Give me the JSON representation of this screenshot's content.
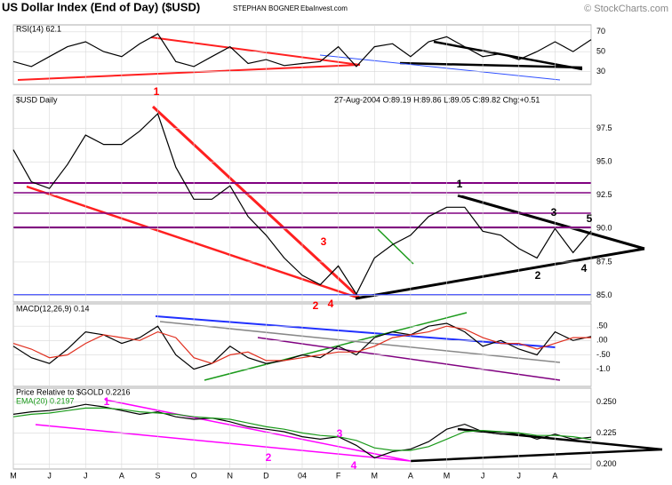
{
  "header": {
    "title": "US Dollar Index (End of Day) ($USD)",
    "author": "STEPHAN BOGNER",
    "site": "EbaInvest.com",
    "copyright": "© StockCharts.com"
  },
  "chart_data": [
    {
      "type": "line",
      "title": "RSI(14) 62.1",
      "color": "#000000",
      "grid": true,
      "values": [
        40,
        35,
        45,
        55,
        60,
        50,
        45,
        58,
        68,
        40,
        35,
        45,
        55,
        38,
        42,
        36,
        38,
        40,
        55,
        35,
        55,
        58,
        45,
        60,
        65,
        55,
        45,
        48,
        42,
        50,
        60,
        50,
        62.1
      ],
      "ylim": [
        17,
        77
      ],
      "yticks": [
        30,
        50,
        70
      ]
    },
    {
      "type": "line",
      "title": "$USD Daily",
      "subtitle": "27-Aug-2004 O:89.19 H:89.86 L:89.05 C:89.82 Chg:+0.51",
      "color": "#000000",
      "grid": true,
      "values": [
        95.9,
        93.5,
        93.0,
        94.8,
        97.0,
        96.3,
        96.3,
        97.3,
        98.6,
        94.6,
        92.2,
        92.2,
        93.2,
        90.9,
        89.5,
        87.8,
        86.5,
        85.8,
        87.2,
        85.1,
        87.8,
        88.8,
        89.5,
        90.9,
        91.6,
        91.6,
        89.8,
        89.5,
        88.5,
        87.8,
        90.0,
        88.2,
        89.82
      ],
      "ylim": [
        84.5,
        100
      ],
      "yticks": [
        {
          "value": 85,
          "label": "85.0"
        },
        {
          "value": 87.5,
          "label": "87.5"
        },
        {
          "value": 90,
          "label": "90.0"
        },
        {
          "value": 92.5,
          "label": "92.5"
        },
        {
          "value": 95,
          "label": "95.0"
        },
        {
          "value": 97.5,
          "label": "97.5"
        }
      ],
      "annotations": [
        {
          "text": "1",
          "color": "#ff0000"
        },
        {
          "text": "2",
          "color": "#ff0000"
        },
        {
          "text": "3",
          "color": "#ff0000"
        },
        {
          "text": "4",
          "color": "#ff0000"
        },
        {
          "text": "1",
          "color": "#000000"
        },
        {
          "text": "2",
          "color": "#000000"
        },
        {
          "text": "3",
          "color": "#000000"
        },
        {
          "text": "4",
          "color": "#000000"
        },
        {
          "text": "5",
          "color": "#000000"
        }
      ]
    },
    {
      "type": "line",
      "title": "MACD(12,26,9) 0.14",
      "grid": true,
      "series": [
        {
          "color": "#000000",
          "values": [
            -0.2,
            -0.6,
            -0.8,
            -0.3,
            0.3,
            0.2,
            -0.1,
            0.1,
            0.5,
            -0.5,
            -1.0,
            -0.8,
            -0.2,
            -0.6,
            -0.8,
            -0.7,
            -0.5,
            -0.6,
            -0.2,
            -0.5,
            0.1,
            0.3,
            0.2,
            0.5,
            0.6,
            0.3,
            -0.2,
            0.0,
            -0.3,
            -0.5,
            0.3,
            0.0,
            0.14
          ]
        },
        {
          "color": "#e03020",
          "values": [
            -0.1,
            -0.3,
            -0.6,
            -0.5,
            -0.1,
            0.2,
            0.1,
            0.0,
            0.3,
            0.1,
            -0.6,
            -0.8,
            -0.5,
            -0.4,
            -0.7,
            -0.7,
            -0.6,
            -0.5,
            -0.4,
            -0.4,
            -0.2,
            0.1,
            0.2,
            0.3,
            0.5,
            0.4,
            0.1,
            -0.1,
            -0.1,
            -0.3,
            -0.1,
            0.1,
            0.1
          ]
        }
      ],
      "ylim": [
        -1.6,
        1.28
      ],
      "yticks": [
        {
          "value": 0.5,
          "label": ".50"
        },
        {
          "value": 0,
          "label": ".00"
        },
        {
          "value": -0.5,
          "label": "-.50"
        },
        {
          "value": -1,
          "label": "-1.0"
        }
      ]
    },
    {
      "type": "line",
      "title": "Price Relative to $GOLD 0.2216",
      "grid": true,
      "series": [
        {
          "color": "#000000",
          "values": [
            0.24,
            0.242,
            0.243,
            0.245,
            0.248,
            0.246,
            0.243,
            0.24,
            0.242,
            0.238,
            0.236,
            0.237,
            0.234,
            0.23,
            0.228,
            0.226,
            0.222,
            0.22,
            0.222,
            0.215,
            0.205,
            0.21,
            0.212,
            0.218,
            0.228,
            0.232,
            0.226,
            0.224,
            0.225,
            0.22,
            0.224,
            0.22,
            0.2216
          ]
        },
        {
          "name": "EMA(20) 0.2197",
          "color": "#1a9a1a",
          "values": [
            0.238,
            0.24,
            0.241,
            0.243,
            0.245,
            0.245,
            0.244,
            0.242,
            0.241,
            0.24,
            0.238,
            0.237,
            0.236,
            0.233,
            0.23,
            0.228,
            0.225,
            0.223,
            0.222,
            0.219,
            0.213,
            0.211,
            0.211,
            0.214,
            0.22,
            0.226,
            0.227,
            0.226,
            0.225,
            0.223,
            0.223,
            0.222,
            0.2197
          ]
        }
      ],
      "ylim": [
        0.196,
        0.261
      ],
      "yticks": [
        {
          "value": 0.25,
          "label": "0.250"
        },
        {
          "value": 0.225,
          "label": "0.225"
        },
        {
          "value": 0.2,
          "label": "0.200"
        }
      ],
      "categories": [
        "M",
        null,
        "J",
        null,
        "J",
        null,
        "A",
        null,
        "S",
        null,
        "O",
        null,
        "N",
        null,
        "D",
        null,
        "04",
        null,
        "F",
        null,
        "M",
        null,
        "A",
        null,
        "M",
        null,
        "J",
        null,
        "J",
        null,
        "A",
        null,
        null
      ],
      "annotations": [
        {
          "text": "1",
          "color": "#ff00ff"
        },
        {
          "text": "2",
          "color": "#ff00ff"
        },
        {
          "text": "3",
          "color": "#ff00ff"
        },
        {
          "text": "4",
          "color": "#ff00ff"
        }
      ]
    }
  ]
}
